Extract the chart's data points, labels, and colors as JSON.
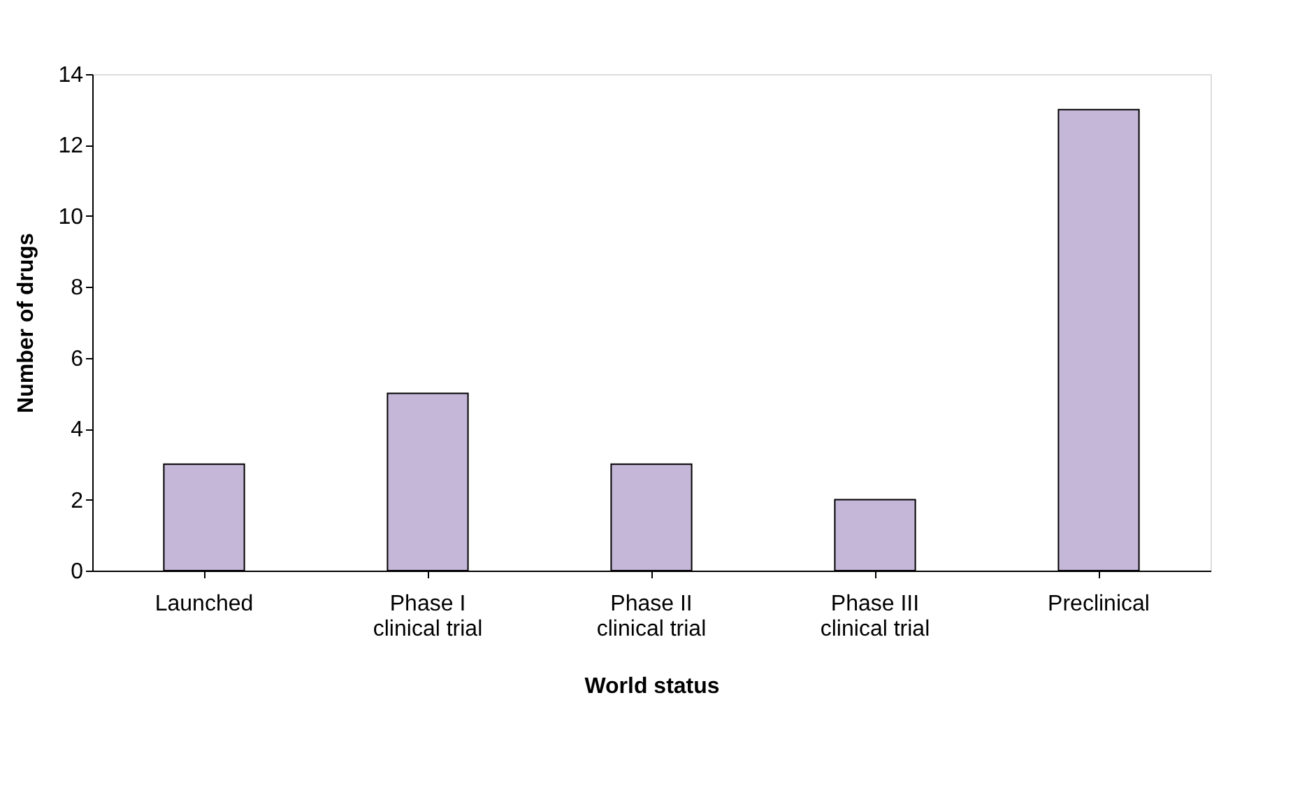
{
  "chart_data": {
    "type": "bar",
    "xlabel": "World status",
    "ylabel": "Number of drugs",
    "categories": [
      "Launched",
      "Phase I\nclinical trial",
      "Phase II\nclinical trial",
      "Phase III\nclinical trial",
      "Preclinical"
    ],
    "values": [
      3,
      5,
      3,
      2,
      13
    ],
    "color": "#c5b7d7",
    "ylim": [
      0,
      14
    ],
    "yticks": [
      0,
      2,
      4,
      6,
      8,
      10,
      12,
      14
    ],
    "grid": false
  }
}
